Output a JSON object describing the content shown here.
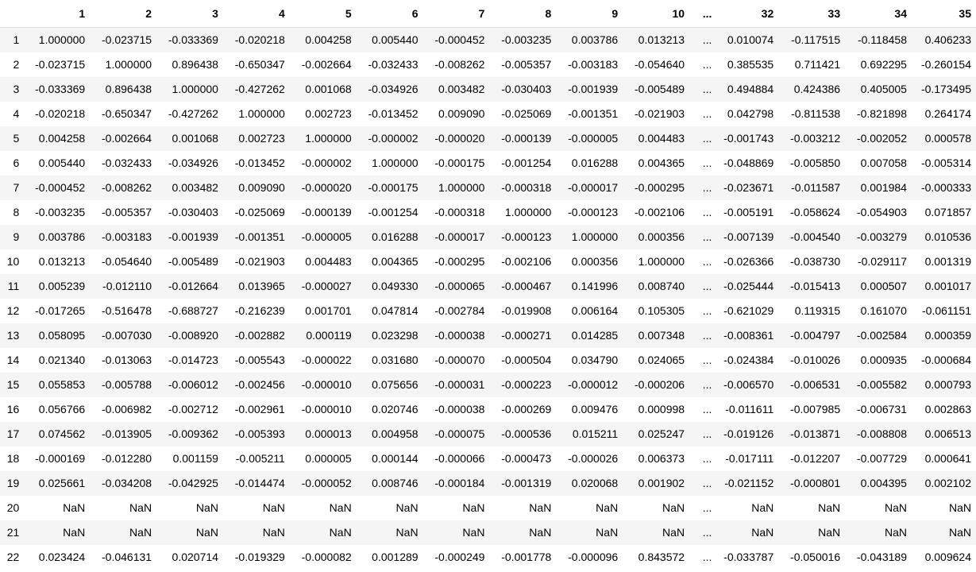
{
  "table": {
    "columns": [
      "1",
      "2",
      "3",
      "4",
      "5",
      "6",
      "7",
      "8",
      "9",
      "10",
      "...",
      "32",
      "33",
      "34",
      "35"
    ],
    "rows": [
      {
        "index": "1",
        "values": [
          "1.000000",
          "-0.023715",
          "-0.033369",
          "-0.020218",
          "0.004258",
          "0.005440",
          "-0.000452",
          "-0.003235",
          "0.003786",
          "0.013213",
          "...",
          "0.010074",
          "-0.117515",
          "-0.118458",
          "0.406233"
        ]
      },
      {
        "index": "2",
        "values": [
          "-0.023715",
          "1.000000",
          "0.896438",
          "-0.650347",
          "-0.002664",
          "-0.032433",
          "-0.008262",
          "-0.005357",
          "-0.003183",
          "-0.054640",
          "...",
          "0.385535",
          "0.711421",
          "0.692295",
          "-0.260154"
        ]
      },
      {
        "index": "3",
        "values": [
          "-0.033369",
          "0.896438",
          "1.000000",
          "-0.427262",
          "0.001068",
          "-0.034926",
          "0.003482",
          "-0.030403",
          "-0.001939",
          "-0.005489",
          "...",
          "0.494884",
          "0.424386",
          "0.405005",
          "-0.173495"
        ]
      },
      {
        "index": "4",
        "values": [
          "-0.020218",
          "-0.650347",
          "-0.427262",
          "1.000000",
          "0.002723",
          "-0.013452",
          "0.009090",
          "-0.025069",
          "-0.001351",
          "-0.021903",
          "...",
          "0.042798",
          "-0.811538",
          "-0.821898",
          "0.264174"
        ]
      },
      {
        "index": "5",
        "values": [
          "0.004258",
          "-0.002664",
          "0.001068",
          "0.002723",
          "1.000000",
          "-0.000002",
          "-0.000020",
          "-0.000139",
          "-0.000005",
          "0.004483",
          "...",
          "-0.001743",
          "-0.003212",
          "-0.002052",
          "0.000578"
        ]
      },
      {
        "index": "6",
        "values": [
          "0.005440",
          "-0.032433",
          "-0.034926",
          "-0.013452",
          "-0.000002",
          "1.000000",
          "-0.000175",
          "-0.001254",
          "0.016288",
          "0.004365",
          "...",
          "-0.048869",
          "-0.005850",
          "0.007058",
          "-0.005314"
        ]
      },
      {
        "index": "7",
        "values": [
          "-0.000452",
          "-0.008262",
          "0.003482",
          "0.009090",
          "-0.000020",
          "-0.000175",
          "1.000000",
          "-0.000318",
          "-0.000017",
          "-0.000295",
          "...",
          "-0.023671",
          "-0.011587",
          "0.001984",
          "-0.000333"
        ]
      },
      {
        "index": "8",
        "values": [
          "-0.003235",
          "-0.005357",
          "-0.030403",
          "-0.025069",
          "-0.000139",
          "-0.001254",
          "-0.000318",
          "1.000000",
          "-0.000123",
          "-0.002106",
          "...",
          "-0.005191",
          "-0.058624",
          "-0.054903",
          "0.071857"
        ]
      },
      {
        "index": "9",
        "values": [
          "0.003786",
          "-0.003183",
          "-0.001939",
          "-0.001351",
          "-0.000005",
          "0.016288",
          "-0.000017",
          "-0.000123",
          "1.000000",
          "0.000356",
          "...",
          "-0.007139",
          "-0.004540",
          "-0.003279",
          "0.010536"
        ]
      },
      {
        "index": "10",
        "values": [
          "0.013213",
          "-0.054640",
          "-0.005489",
          "-0.021903",
          "0.004483",
          "0.004365",
          "-0.000295",
          "-0.002106",
          "0.000356",
          "1.000000",
          "...",
          "-0.026366",
          "-0.038730",
          "-0.029117",
          "0.001319"
        ]
      },
      {
        "index": "11",
        "values": [
          "0.005239",
          "-0.012110",
          "-0.012664",
          "0.013965",
          "-0.000027",
          "0.049330",
          "-0.000065",
          "-0.000467",
          "0.141996",
          "0.008740",
          "...",
          "-0.025444",
          "-0.015413",
          "0.000507",
          "0.001017"
        ]
      },
      {
        "index": "12",
        "values": [
          "-0.017265",
          "-0.516478",
          "-0.688727",
          "-0.216239",
          "0.001701",
          "0.047814",
          "-0.002784",
          "-0.019908",
          "0.006164",
          "0.105305",
          "...",
          "-0.621029",
          "0.119315",
          "0.161070",
          "-0.061151"
        ]
      },
      {
        "index": "13",
        "values": [
          "0.058095",
          "-0.007030",
          "-0.008920",
          "-0.002882",
          "0.000119",
          "0.023298",
          "-0.000038",
          "-0.000271",
          "0.014285",
          "0.007348",
          "...",
          "-0.008361",
          "-0.004797",
          "-0.002584",
          "0.000359"
        ]
      },
      {
        "index": "14",
        "values": [
          "0.021340",
          "-0.013063",
          "-0.014723",
          "-0.005543",
          "-0.000022",
          "0.031680",
          "-0.000070",
          "-0.000504",
          "0.034790",
          "0.024065",
          "...",
          "-0.024384",
          "-0.010026",
          "0.000935",
          "-0.000684"
        ]
      },
      {
        "index": "15",
        "values": [
          "0.055853",
          "-0.005788",
          "-0.006012",
          "-0.002456",
          "-0.000010",
          "0.075656",
          "-0.000031",
          "-0.000223",
          "-0.000012",
          "-0.000206",
          "...",
          "-0.006570",
          "-0.006531",
          "-0.005582",
          "0.000793"
        ]
      },
      {
        "index": "16",
        "values": [
          "0.056766",
          "-0.006982",
          "-0.002712",
          "-0.002961",
          "-0.000010",
          "0.020746",
          "-0.000038",
          "-0.000269",
          "0.009476",
          "0.000998",
          "...",
          "-0.011611",
          "-0.007985",
          "-0.006731",
          "0.002863"
        ]
      },
      {
        "index": "17",
        "values": [
          "0.074562",
          "-0.013905",
          "-0.009362",
          "-0.005393",
          "0.000013",
          "0.004958",
          "-0.000075",
          "-0.000536",
          "0.015211",
          "0.025247",
          "...",
          "-0.019126",
          "-0.013871",
          "-0.008808",
          "0.006513"
        ]
      },
      {
        "index": "18",
        "values": [
          "-0.000169",
          "-0.012280",
          "0.001159",
          "-0.005211",
          "0.000005",
          "0.000144",
          "-0.000066",
          "-0.000473",
          "-0.000026",
          "0.006373",
          "...",
          "-0.017111",
          "-0.012207",
          "-0.007729",
          "0.000641"
        ]
      },
      {
        "index": "19",
        "values": [
          "0.025661",
          "-0.034208",
          "-0.042925",
          "-0.014474",
          "-0.000052",
          "0.008746",
          "-0.000184",
          "-0.001319",
          "0.020068",
          "0.001902",
          "...",
          "-0.021152",
          "-0.000801",
          "0.004395",
          "0.002102"
        ]
      },
      {
        "index": "20",
        "values": [
          "NaN",
          "NaN",
          "NaN",
          "NaN",
          "NaN",
          "NaN",
          "NaN",
          "NaN",
          "NaN",
          "NaN",
          "...",
          "NaN",
          "NaN",
          "NaN",
          "NaN"
        ]
      },
      {
        "index": "21",
        "values": [
          "NaN",
          "NaN",
          "NaN",
          "NaN",
          "NaN",
          "NaN",
          "NaN",
          "NaN",
          "NaN",
          "NaN",
          "...",
          "NaN",
          "NaN",
          "NaN",
          "NaN"
        ]
      },
      {
        "index": "22",
        "values": [
          "0.023424",
          "-0.046131",
          "0.020714",
          "-0.019329",
          "-0.000082",
          "0.001289",
          "-0.000249",
          "-0.001778",
          "-0.000096",
          "0.843572",
          "...",
          "-0.033787",
          "-0.050016",
          "-0.043189",
          "0.009624"
        ]
      }
    ]
  }
}
